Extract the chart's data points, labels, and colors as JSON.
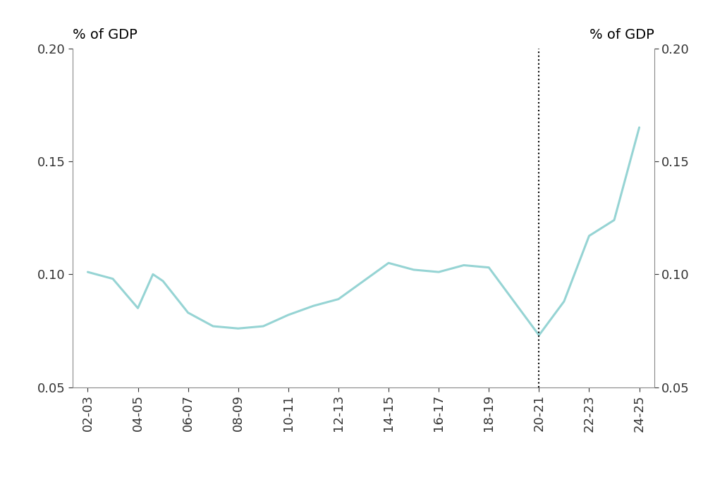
{
  "x_labels": [
    "02-03",
    "04-05",
    "06-07",
    "08-09",
    "10-11",
    "12-13",
    "14-15",
    "16-17",
    "18-19",
    "20-21",
    "22-23",
    "24-25"
  ],
  "x_pts": [
    0,
    0.5,
    1,
    1.3,
    1.5,
    2,
    2.5,
    3,
    3.5,
    4,
    4.5,
    5,
    5.5,
    6,
    6.5,
    7,
    7.5,
    8,
    8.5,
    9,
    9.5,
    10,
    10.5,
    11
  ],
  "y_pts": [
    0.101,
    0.098,
    0.085,
    0.1,
    0.097,
    0.083,
    0.077,
    0.076,
    0.077,
    0.082,
    0.086,
    0.089,
    0.097,
    0.105,
    0.102,
    0.101,
    0.104,
    0.103,
    0.088,
    0.073,
    0.088,
    0.117,
    0.124,
    0.165
  ],
  "line_color": "#96d4d4",
  "line_width": 2.2,
  "ylim": [
    0.05,
    0.2
  ],
  "yticks": [
    0.05,
    0.1,
    0.15,
    0.2
  ],
  "ylabel_left": "% of GDP",
  "ylabel_right": "% of GDP",
  "dotted_line_x": 9,
  "background_color": "#ffffff",
  "spine_color": "#888888",
  "tick_color": "#333333",
  "label_fontsize": 14,
  "tick_fontsize": 13
}
